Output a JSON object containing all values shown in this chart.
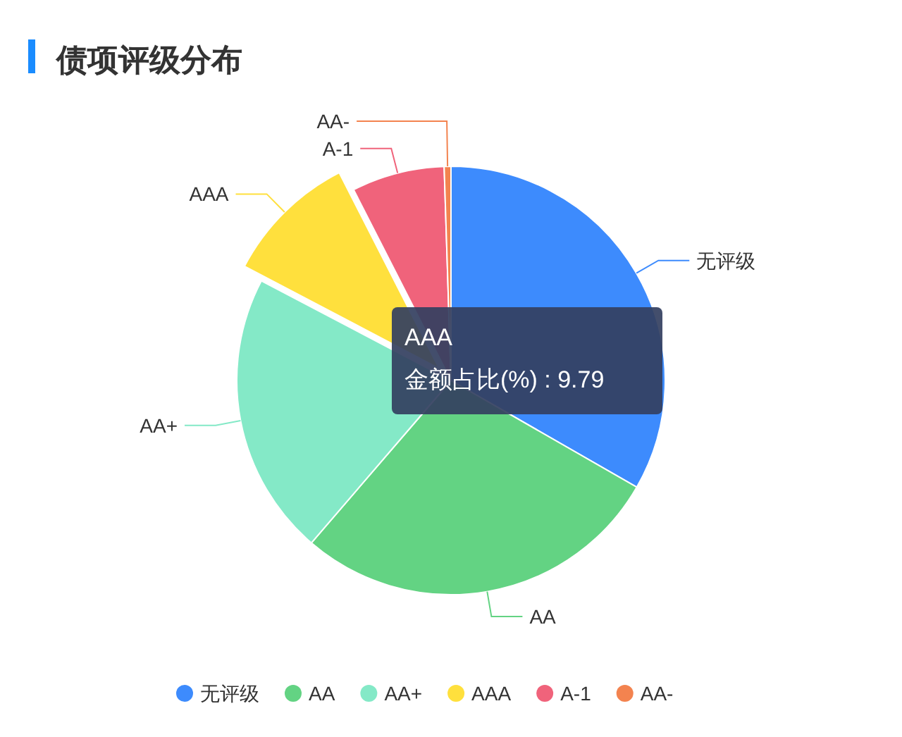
{
  "chart_data": {
    "type": "pie",
    "title": "债项评级分布",
    "categories": [
      "无评级",
      "AA",
      "AA+",
      "AAA",
      "A-1",
      "AA-"
    ],
    "values": [
      33.3,
      28.0,
      21.4,
      9.79,
      7.0,
      0.51
    ],
    "colors": [
      "#3d8bfd",
      "#63d383",
      "#84e9c7",
      "#ffe03d",
      "#f0637b",
      "#f3834f"
    ],
    "annotations": [
      "AAA",
      "金额占比(%) : 9.79"
    ],
    "legend": "bottom"
  }
}
